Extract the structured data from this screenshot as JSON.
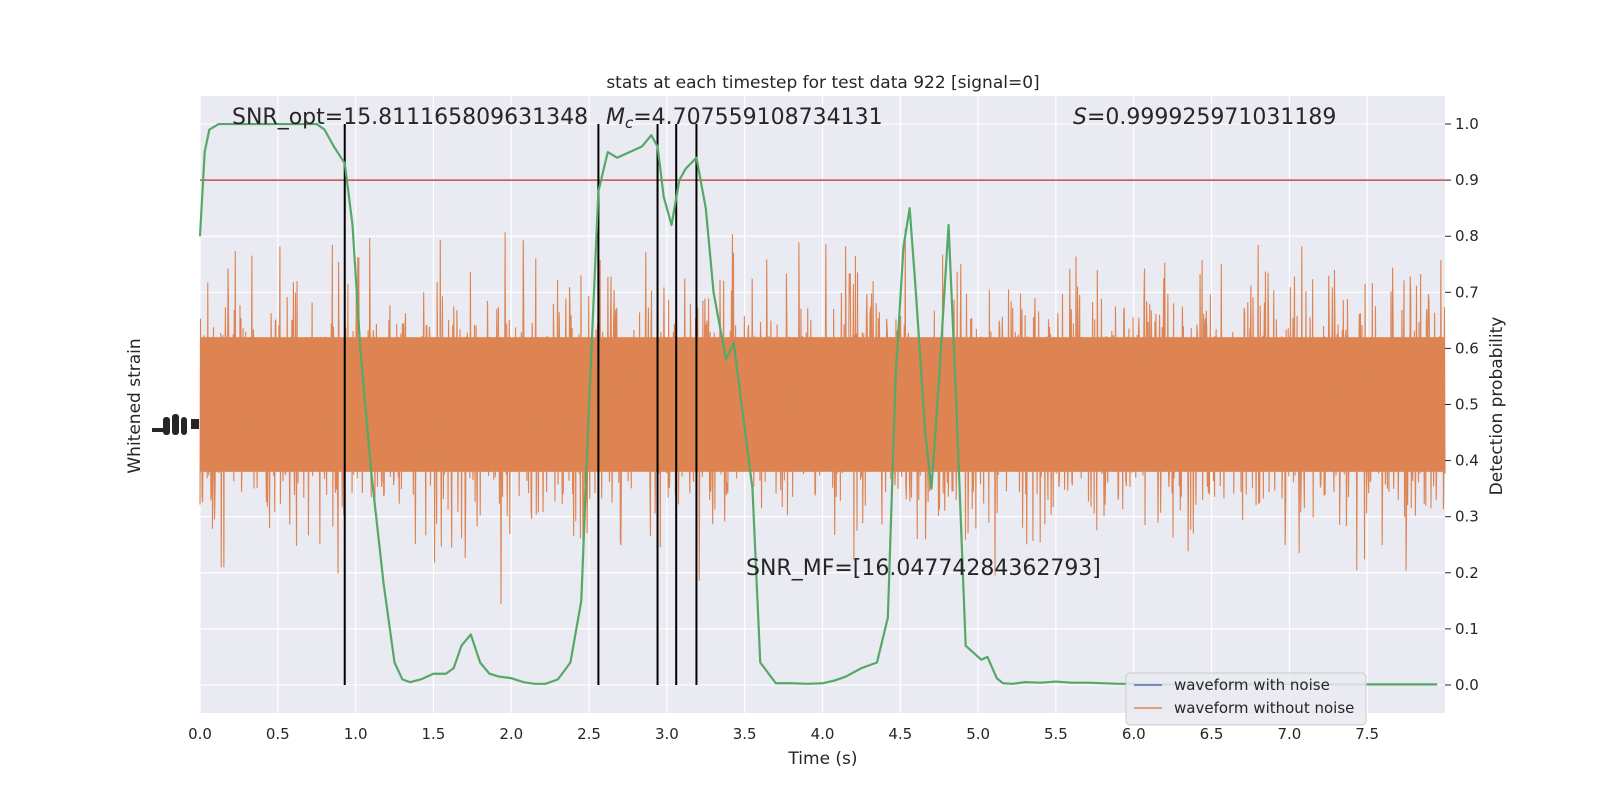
{
  "chart_data": {
    "type": "line",
    "title": "stats at each timestep for test data 922 [signal=0]",
    "xlabel": "Time (s)",
    "ylabel_left": "Whitened strain",
    "ylabel_right": "Detection probability",
    "xlim": [
      0.0,
      8.0
    ],
    "ylim_right": [
      -0.05,
      1.05
    ],
    "x_ticks": [
      "0.0",
      "0.5",
      "1.0",
      "1.5",
      "2.0",
      "2.5",
      "3.0",
      "3.5",
      "4.0",
      "4.5",
      "5.0",
      "5.5",
      "6.0",
      "6.5",
      "7.0",
      "7.5"
    ],
    "y_ticks_right": [
      "0.0",
      "0.1",
      "0.2",
      "0.3",
      "0.4",
      "0.5",
      "0.6",
      "0.7",
      "0.8",
      "0.9",
      "1.0"
    ],
    "grid": true,
    "threshold": {
      "value": 0.9,
      "color": "#c44e52"
    },
    "vertical_lines": [
      0.93,
      2.56,
      2.94,
      3.06,
      3.19
    ],
    "annotations": {
      "snr_opt": "SNR_opt=15.811165809631348",
      "mc_symbol": "M",
      "mc_sub": "c",
      "mc_value": "=4.707559108734131",
      "s_symbol": "S",
      "s_value": "=0.999925971031189",
      "snr_mf": "SNR_MF=[16.04774284362793]"
    },
    "legend": {
      "placement": "lower-right",
      "entries": [
        {
          "name": "waveform with noise",
          "color": "#4c72b0"
        },
        {
          "name": "waveform without noise",
          "color": "#dd8452"
        }
      ]
    },
    "strain_color": "#dd8452",
    "series": [
      {
        "name": "Detection probability",
        "color": "#55a868",
        "x": [
          0.0,
          0.03,
          0.06,
          0.12,
          0.18,
          0.3,
          0.45,
          0.6,
          0.68,
          0.75,
          0.8,
          0.86,
          0.93,
          0.98,
          1.03,
          1.1,
          1.18,
          1.25,
          1.3,
          1.35,
          1.42,
          1.5,
          1.58,
          1.63,
          1.68,
          1.74,
          1.8,
          1.86,
          1.92,
          2.0,
          2.08,
          2.15,
          2.22,
          2.3,
          2.38,
          2.45,
          2.5,
          2.56,
          2.62,
          2.68,
          2.76,
          2.84,
          2.9,
          2.94,
          2.98,
          3.03,
          3.08,
          3.12,
          3.19,
          3.25,
          3.3,
          3.38,
          3.43,
          3.48,
          3.55,
          3.6,
          3.7,
          3.8,
          3.9,
          4.0,
          4.08,
          4.15,
          4.25,
          4.35,
          4.42,
          4.47,
          4.52,
          4.56,
          4.6,
          4.66,
          4.7,
          4.75,
          4.81,
          4.86,
          4.92,
          4.96,
          5.02,
          5.06,
          5.12,
          5.16,
          5.22,
          5.3,
          5.4,
          5.5,
          5.6,
          5.7,
          5.8,
          5.9,
          6.0,
          6.2,
          6.4,
          6.6,
          6.8,
          7.0,
          7.2,
          7.4,
          7.6,
          7.8,
          7.95
        ],
        "values": [
          0.8,
          0.95,
          0.99,
          1.0,
          1.0,
          1.0,
          1.0,
          1.0,
          1.0,
          1.0,
          0.99,
          0.96,
          0.93,
          0.82,
          0.6,
          0.38,
          0.18,
          0.04,
          0.01,
          0.005,
          0.01,
          0.02,
          0.02,
          0.03,
          0.07,
          0.09,
          0.04,
          0.02,
          0.015,
          0.012,
          0.005,
          0.002,
          0.002,
          0.01,
          0.04,
          0.15,
          0.5,
          0.88,
          0.95,
          0.94,
          0.95,
          0.96,
          0.98,
          0.96,
          0.87,
          0.82,
          0.9,
          0.92,
          0.94,
          0.85,
          0.7,
          0.58,
          0.61,
          0.5,
          0.35,
          0.04,
          0.003,
          0.003,
          0.002,
          0.003,
          0.008,
          0.015,
          0.03,
          0.04,
          0.12,
          0.55,
          0.78,
          0.85,
          0.7,
          0.45,
          0.35,
          0.55,
          0.82,
          0.5,
          0.07,
          0.06,
          0.045,
          0.05,
          0.012,
          0.003,
          0.002,
          0.005,
          0.004,
          0.006,
          0.004,
          0.004,
          0.003,
          0.002,
          0.002,
          0.001,
          0.001,
          0.001,
          0.001,
          0.002,
          0.001,
          0.001,
          0.001,
          0.001,
          0.001
        ]
      }
    ]
  }
}
